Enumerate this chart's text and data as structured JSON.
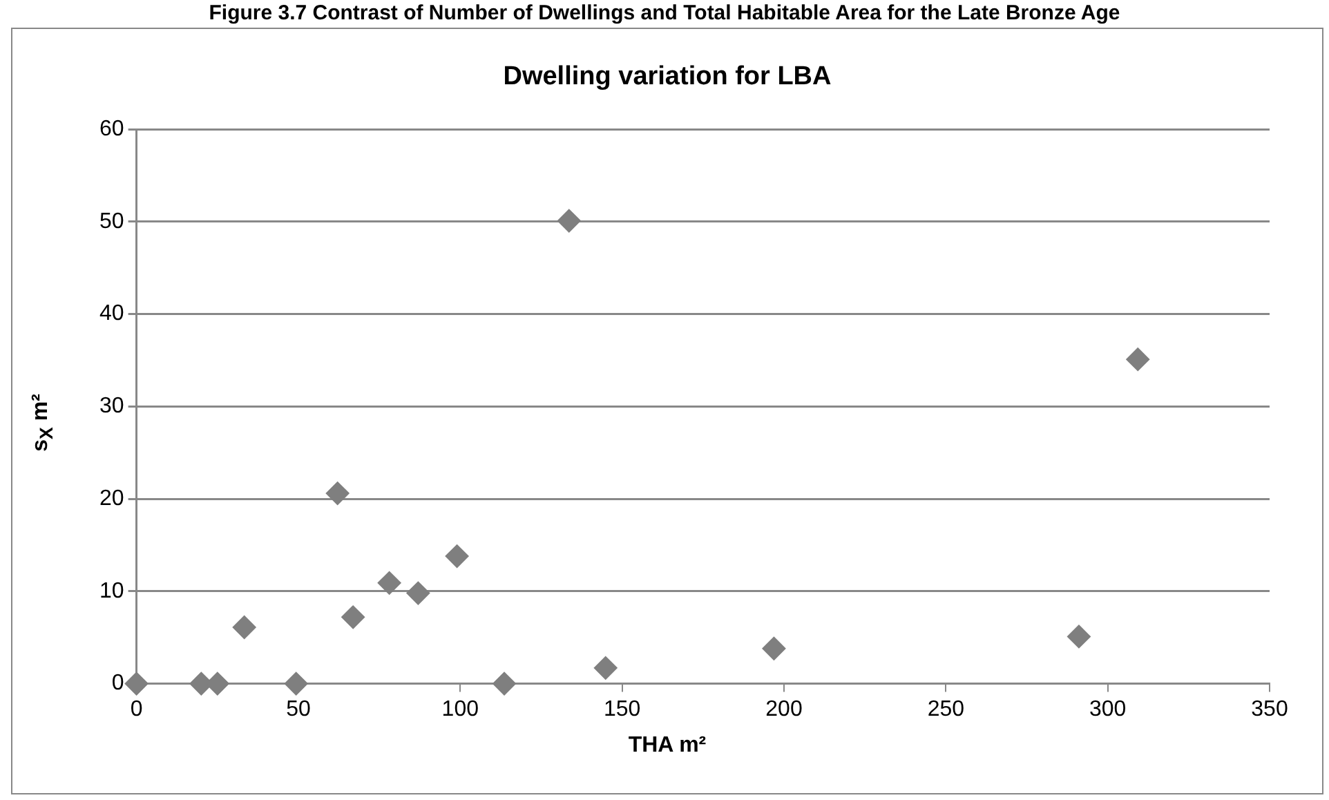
{
  "chart_data": {
    "type": "scatter",
    "title": "Dwelling variation for LBA",
    "xlabel": "THA m²",
    "ylabel": "s$_{X}$ m²",
    "annotations": [
      "Figure 3.7 Contrast of Number of Dwellings and Total Habitable Area for the Late Bronze Age"
    ],
    "x": [
      0,
      20,
      25,
      33.3,
      49.3,
      62.1,
      66.9,
      78.1,
      87,
      99,
      113.6,
      133.6,
      144.9,
      196.9,
      291.1,
      309.3
    ],
    "values": [
      0,
      0,
      0,
      6.1,
      0,
      20.6,
      7.2,
      10.9,
      9.8,
      13.8,
      0,
      50.1,
      1.7,
      3.8,
      5.1,
      35.1
    ],
    "color": "#7f7f7f",
    "marker": "diamond",
    "grid": "y",
    "legend": false,
    "xlim": [
      0,
      350
    ],
    "xticks": [
      0,
      50,
      100,
      150,
      200,
      250,
      300,
      350
    ],
    "ylim": [
      0,
      60
    ],
    "yticks": [
      0,
      10,
      20,
      30,
      40,
      50,
      60
    ]
  }
}
